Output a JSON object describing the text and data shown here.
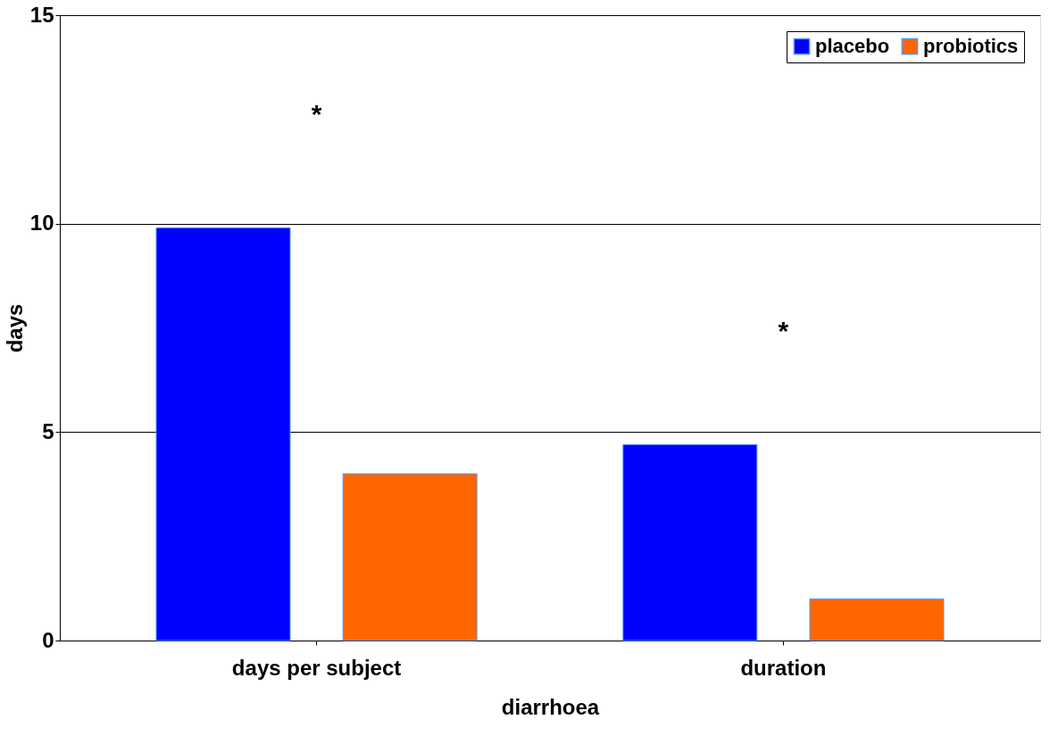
{
  "chart_data": {
    "type": "bar",
    "xlabel": "diarrhoea",
    "ylabel": "days",
    "categories": [
      "days per subject",
      "duration"
    ],
    "series": [
      {
        "name": "placebo",
        "color": "#0000ff",
        "values": [
          9.9,
          4.7
        ]
      },
      {
        "name": "probiotics",
        "color": "#ff6600",
        "values": [
          4.0,
          1.0
        ]
      }
    ],
    "ylim": [
      0,
      15
    ],
    "yticks": [
      0,
      5,
      10,
      15
    ],
    "grid": "y",
    "legend": "top right",
    "annotations": [
      "*",
      "*"
    ]
  }
}
